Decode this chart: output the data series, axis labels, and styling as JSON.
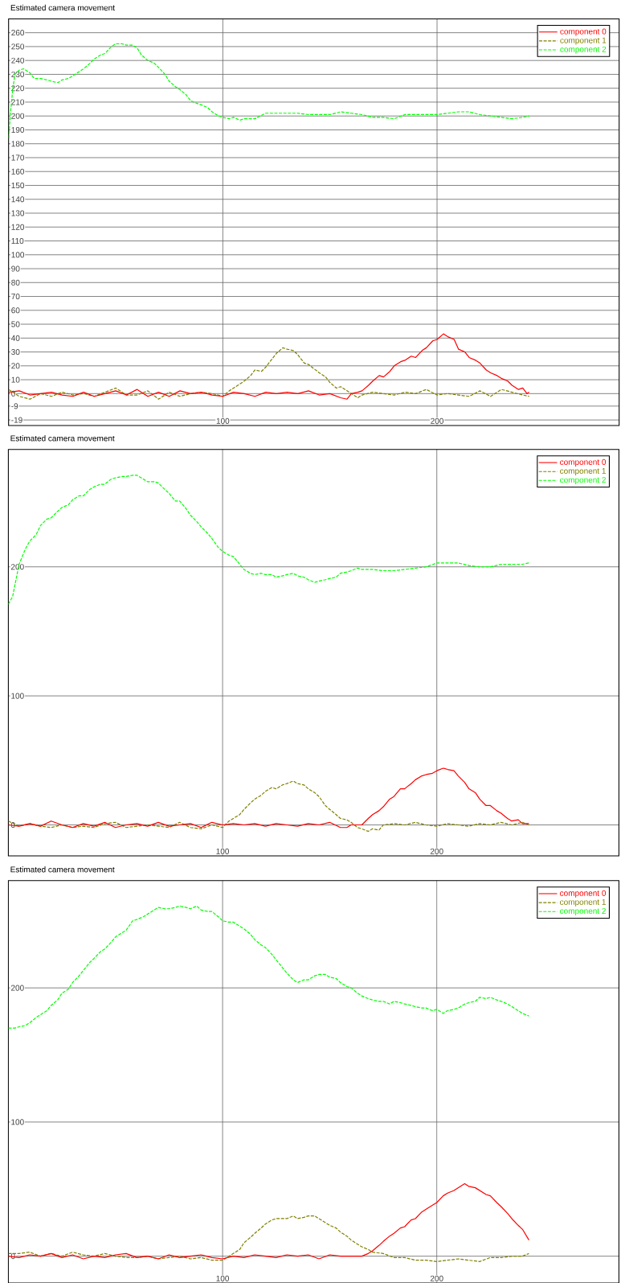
{
  "chart_data": [
    {
      "type": "line",
      "title": "Estimated camera movement",
      "xlim": [
        0,
        285
      ],
      "ylim": [
        -23,
        270
      ],
      "xticks": [
        100,
        200
      ],
      "yticks": [
        -19,
        -9,
        0,
        10,
        20,
        30,
        40,
        50,
        60,
        70,
        80,
        90,
        100,
        110,
        120,
        130,
        140,
        150,
        160,
        170,
        180,
        190,
        200,
        210,
        220,
        230,
        240,
        250,
        260
      ],
      "grid": true,
      "legend": "top right",
      "series": [
        {
          "name": "component 0",
          "color": "#ff0000",
          "line_style": "solid",
          "x": [
            0,
            5,
            10,
            15,
            20,
            25,
            30,
            35,
            40,
            45,
            50,
            55,
            60,
            65,
            70,
            75,
            80,
            85,
            90,
            95,
            100,
            105,
            110,
            115,
            120,
            125,
            130,
            135,
            140,
            145,
            150,
            155,
            158,
            160,
            163,
            165,
            168,
            170,
            173,
            175,
            178,
            180,
            183,
            185,
            188,
            190,
            193,
            195,
            198,
            200,
            203,
            205,
            208,
            210,
            213,
            215,
            218,
            220,
            223,
            225,
            228,
            230,
            233,
            235,
            238,
            240,
            242,
            243
          ],
          "values": [
            1,
            2,
            -1,
            0,
            1,
            -1,
            -2,
            1,
            -2,
            0,
            2,
            -1,
            3,
            -2,
            1,
            -2,
            2,
            0,
            1,
            -1,
            -2,
            1,
            0,
            -2,
            1,
            0,
            1,
            0,
            2,
            -1,
            0,
            -3,
            -4,
            0,
            1,
            2,
            6,
            9,
            13,
            12,
            16,
            20,
            23,
            24,
            27,
            26,
            31,
            33,
            38,
            39,
            43,
            41,
            39,
            32,
            30,
            26,
            24,
            22,
            17,
            15,
            13,
            11,
            9,
            6,
            3,
            4,
            0,
            1
          ]
        },
        {
          "name": "component 1",
          "color": "#808000",
          "line_style": "dashed",
          "x": [
            0,
            5,
            10,
            15,
            20,
            25,
            30,
            35,
            40,
            45,
            50,
            55,
            60,
            65,
            70,
            75,
            80,
            85,
            90,
            95,
            100,
            103,
            105,
            108,
            110,
            113,
            115,
            118,
            120,
            123,
            125,
            128,
            130,
            133,
            135,
            138,
            140,
            145,
            148,
            150,
            153,
            155,
            158,
            160,
            163,
            165,
            170,
            175,
            180,
            185,
            190,
            195,
            200,
            205,
            210,
            215,
            220,
            225,
            230,
            235,
            240,
            243
          ],
          "values": [
            3,
            -2,
            -4,
            0,
            -2,
            1,
            -1,
            0,
            -2,
            1,
            4,
            -1,
            -1,
            2,
            -4,
            1,
            -2,
            0,
            1,
            0,
            -2,
            2,
            4,
            7,
            9,
            13,
            17,
            16,
            19,
            25,
            29,
            33,
            32,
            31,
            28,
            22,
            21,
            15,
            12,
            8,
            4,
            5,
            2,
            0,
            -3,
            -1,
            1,
            0,
            -1,
            1,
            0,
            3,
            -1,
            0,
            -1,
            -2,
            2,
            -2,
            3,
            1,
            -1,
            -2
          ]
        },
        {
          "name": "component 2",
          "color": "#00ff00",
          "line_style": "dashed",
          "x": [
            0,
            1,
            2,
            3,
            5,
            7,
            10,
            12,
            15,
            18,
            20,
            23,
            25,
            28,
            30,
            33,
            35,
            38,
            40,
            43,
            45,
            48,
            50,
            53,
            55,
            58,
            60,
            62,
            65,
            68,
            70,
            73,
            75,
            78,
            80,
            83,
            85,
            88,
            90,
            93,
            95,
            98,
            100,
            103,
            105,
            108,
            110,
            115,
            120,
            125,
            130,
            135,
            140,
            145,
            150,
            155,
            160,
            165,
            170,
            175,
            180,
            185,
            190,
            195,
            200,
            205,
            210,
            215,
            220,
            225,
            230,
            235,
            240,
            243
          ],
          "values": [
            184,
            204,
            220,
            230,
            233,
            234,
            231,
            227,
            227,
            226,
            225,
            224,
            226,
            227,
            229,
            232,
            234,
            238,
            241,
            244,
            245,
            250,
            252,
            252,
            251,
            251,
            249,
            244,
            240,
            238,
            235,
            230,
            225,
            221,
            219,
            215,
            211,
            209,
            208,
            206,
            203,
            200,
            199,
            198,
            199,
            197,
            198,
            198,
            202,
            202,
            202,
            202,
            201,
            201,
            201,
            203,
            202,
            201,
            199,
            199,
            198,
            201,
            201,
            201,
            201,
            202,
            203,
            203,
            201,
            200,
            199,
            198,
            199,
            200
          ]
        }
      ]
    },
    {
      "type": "line",
      "title": "Estimated camera movement",
      "xlim": [
        0,
        285
      ],
      "ylim": [
        -24,
        291
      ],
      "xticks": [
        100,
        200
      ],
      "yticks": [
        0,
        100,
        200
      ],
      "grid": true,
      "legend": "top right",
      "series": [
        {
          "name": "component 0",
          "color": "#ff0000",
          "line_style": "solid",
          "x": [
            0,
            5,
            10,
            15,
            20,
            25,
            30,
            35,
            40,
            45,
            50,
            55,
            60,
            65,
            70,
            75,
            80,
            85,
            90,
            95,
            100,
            105,
            110,
            115,
            120,
            125,
            130,
            135,
            140,
            145,
            150,
            155,
            158,
            160,
            165,
            168,
            170,
            173,
            175,
            178,
            180,
            183,
            185,
            188,
            190,
            193,
            195,
            198,
            200,
            203,
            205,
            208,
            210,
            213,
            215,
            218,
            220,
            223,
            225,
            228,
            230,
            233,
            235,
            238,
            240,
            243
          ],
          "values": [
            0,
            -1,
            1,
            -1,
            3,
            0,
            -2,
            1,
            -1,
            2,
            -2,
            0,
            1,
            -1,
            2,
            -1,
            0,
            1,
            -2,
            2,
            0,
            1,
            0,
            1,
            -1,
            1,
            0,
            -1,
            1,
            0,
            2,
            -2,
            -2,
            0,
            0,
            5,
            8,
            11,
            14,
            20,
            22,
            28,
            28,
            32,
            35,
            38,
            39,
            40,
            42,
            44,
            43,
            42,
            38,
            33,
            28,
            25,
            20,
            15,
            15,
            11,
            9,
            5,
            3,
            4,
            1,
            1
          ]
        },
        {
          "name": "component 1",
          "color": "#808000",
          "line_style": "dashed",
          "x": [
            0,
            5,
            10,
            15,
            20,
            25,
            30,
            35,
            40,
            45,
            50,
            55,
            60,
            65,
            70,
            75,
            80,
            85,
            90,
            95,
            100,
            103,
            105,
            108,
            110,
            113,
            115,
            118,
            120,
            123,
            125,
            128,
            130,
            133,
            135,
            138,
            140,
            143,
            145,
            148,
            150,
            153,
            155,
            158,
            160,
            163,
            165,
            168,
            170,
            173,
            175,
            180,
            185,
            190,
            195,
            200,
            205,
            210,
            215,
            220,
            225,
            230,
            235,
            240,
            243
          ],
          "values": [
            3,
            -1,
            1,
            -1,
            -2,
            0,
            -2,
            -1,
            -2,
            1,
            2,
            -2,
            -1,
            0,
            -1,
            -2,
            2,
            -2,
            -3,
            0,
            -2,
            3,
            5,
            8,
            12,
            17,
            20,
            23,
            26,
            29,
            28,
            31,
            32,
            34,
            32,
            31,
            28,
            25,
            22,
            15,
            12,
            8,
            5,
            4,
            2,
            -2,
            -3,
            -5,
            -3,
            -4,
            0,
            1,
            0,
            2,
            0,
            -1,
            1,
            0,
            -1,
            1,
            0,
            2,
            0,
            2,
            0
          ]
        },
        {
          "name": "component 2",
          "color": "#00ff00",
          "line_style": "dashed",
          "x": [
            0,
            2,
            5,
            8,
            10,
            13,
            15,
            18,
            20,
            23,
            25,
            28,
            30,
            33,
            35,
            38,
            40,
            43,
            45,
            48,
            50,
            53,
            55,
            58,
            60,
            62,
            65,
            68,
            70,
            73,
            75,
            78,
            80,
            83,
            85,
            88,
            90,
            93,
            95,
            98,
            100,
            103,
            105,
            108,
            110,
            113,
            115,
            118,
            120,
            123,
            125,
            128,
            130,
            133,
            135,
            138,
            140,
            143,
            145,
            148,
            150,
            153,
            155,
            158,
            160,
            163,
            165,
            170,
            175,
            180,
            185,
            190,
            195,
            200,
            205,
            210,
            215,
            220,
            225,
            230,
            235,
            240,
            243
          ],
          "values": [
            171,
            177,
            202,
            214,
            220,
            225,
            232,
            237,
            238,
            243,
            246,
            248,
            252,
            255,
            255,
            260,
            262,
            264,
            264,
            268,
            269,
            270,
            270,
            271,
            271,
            269,
            266,
            266,
            265,
            260,
            257,
            251,
            251,
            245,
            240,
            235,
            231,
            226,
            222,
            215,
            212,
            209,
            208,
            202,
            198,
            195,
            194,
            195,
            194,
            194,
            192,
            193,
            194,
            195,
            193,
            192,
            190,
            188,
            189,
            190,
            191,
            192,
            195,
            196,
            197,
            199,
            198,
            198,
            197,
            197,
            198,
            199,
            200,
            203,
            203,
            203,
            201,
            200,
            200,
            202,
            202,
            202,
            203
          ]
        }
      ]
    },
    {
      "type": "line",
      "title": "Estimated camera movement",
      "xlim": [
        0,
        285
      ],
      "ylim": [
        -20,
        280
      ],
      "xticks": [
        100,
        200
      ],
      "yticks": [
        0,
        100,
        200
      ],
      "grid": true,
      "legend": "top right",
      "series": [
        {
          "name": "component 0",
          "color": "#ff0000",
          "line_style": "solid",
          "x": [
            0,
            5,
            10,
            15,
            20,
            25,
            30,
            35,
            40,
            45,
            50,
            55,
            60,
            65,
            70,
            75,
            80,
            85,
            90,
            95,
            100,
            105,
            110,
            115,
            120,
            125,
            130,
            135,
            140,
            145,
            150,
            155,
            160,
            165,
            168,
            170,
            173,
            175,
            178,
            180,
            183,
            185,
            188,
            190,
            193,
            195,
            198,
            200,
            203,
            205,
            208,
            210,
            213,
            215,
            218,
            220,
            223,
            225,
            228,
            230,
            233,
            235,
            238,
            240,
            243
          ],
          "values": [
            0,
            -1,
            1,
            0,
            2,
            -1,
            1,
            -2,
            0,
            -1,
            1,
            2,
            -1,
            0,
            -2,
            1,
            -1,
            0,
            1,
            -1,
            -2,
            0,
            -1,
            1,
            0,
            -1,
            1,
            0,
            1,
            -2,
            1,
            0,
            0,
            0,
            2,
            4,
            8,
            11,
            15,
            17,
            21,
            22,
            27,
            28,
            33,
            35,
            38,
            40,
            45,
            47,
            49,
            51,
            54,
            52,
            51,
            49,
            46,
            45,
            40,
            37,
            32,
            28,
            23,
            20,
            12
          ]
        },
        {
          "name": "component 1",
          "color": "#808000",
          "line_style": "dashed",
          "x": [
            0,
            5,
            10,
            15,
            20,
            25,
            30,
            35,
            40,
            45,
            50,
            55,
            60,
            65,
            70,
            75,
            80,
            85,
            90,
            95,
            100,
            103,
            105,
            108,
            110,
            113,
            115,
            118,
            120,
            123,
            125,
            128,
            130,
            133,
            135,
            138,
            140,
            143,
            145,
            148,
            150,
            153,
            155,
            158,
            160,
            163,
            165,
            168,
            170,
            175,
            180,
            185,
            190,
            195,
            200,
            205,
            210,
            215,
            220,
            225,
            230,
            235,
            240,
            243
          ],
          "values": [
            2,
            2,
            3,
            0,
            2,
            0,
            3,
            1,
            0,
            2,
            0,
            -1,
            -1,
            0,
            -2,
            -1,
            0,
            -2,
            -1,
            -3,
            -3,
            0,
            2,
            5,
            10,
            14,
            17,
            21,
            24,
            27,
            28,
            28,
            28,
            30,
            28,
            29,
            30,
            30,
            28,
            25,
            23,
            21,
            18,
            15,
            12,
            9,
            7,
            5,
            3,
            2,
            -1,
            -1,
            -3,
            -3,
            -4,
            -3,
            -2,
            -3,
            -4,
            -1,
            -1,
            0,
            0,
            2
          ]
        },
        {
          "name": "component 2",
          "color": "#00ff00",
          "line_style": "dashed",
          "x": [
            0,
            3,
            5,
            8,
            10,
            13,
            15,
            18,
            20,
            23,
            25,
            28,
            30,
            33,
            35,
            38,
            40,
            43,
            45,
            48,
            50,
            53,
            55,
            58,
            60,
            63,
            65,
            68,
            70,
            73,
            75,
            78,
            80,
            83,
            85,
            88,
            90,
            93,
            95,
            98,
            100,
            103,
            105,
            108,
            110,
            113,
            115,
            118,
            120,
            123,
            125,
            128,
            130,
            133,
            135,
            138,
            140,
            143,
            145,
            148,
            150,
            153,
            155,
            158,
            160,
            163,
            165,
            168,
            170,
            173,
            175,
            178,
            180,
            183,
            185,
            188,
            190,
            193,
            195,
            198,
            200,
            203,
            205,
            208,
            210,
            213,
            215,
            218,
            220,
            223,
            225,
            228,
            230,
            233,
            235,
            238,
            240,
            243
          ],
          "values": [
            170,
            170,
            171,
            172,
            174,
            178,
            180,
            183,
            187,
            191,
            196,
            199,
            204,
            209,
            213,
            219,
            222,
            227,
            229,
            234,
            238,
            241,
            243,
            250,
            251,
            253,
            255,
            258,
            260,
            259,
            259,
            260,
            261,
            260,
            259,
            261,
            258,
            257,
            257,
            253,
            250,
            249,
            249,
            246,
            244,
            240,
            236,
            232,
            230,
            225,
            221,
            215,
            211,
            206,
            204,
            206,
            206,
            209,
            210,
            210,
            208,
            207,
            204,
            201,
            200,
            196,
            194,
            192,
            191,
            190,
            190,
            188,
            190,
            189,
            188,
            187,
            186,
            185,
            185,
            183,
            184,
            181,
            183,
            184,
            185,
            188,
            189,
            190,
            193,
            192,
            193,
            191,
            190,
            188,
            186,
            183,
            181,
            179
          ]
        }
      ]
    }
  ]
}
